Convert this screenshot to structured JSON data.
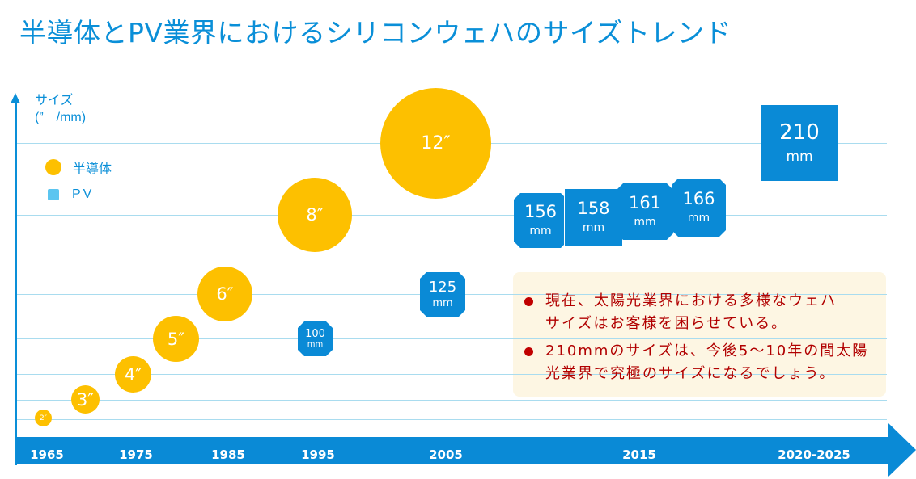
{
  "title": "半導体とPV業界におけるシリコンウェハのサイズトレンド",
  "y_axis": {
    "label": "サイズ",
    "unit": "(”　/mm)"
  },
  "legend": [
    {
      "label": "半導体",
      "color": "#fdc000",
      "shape": "circle"
    },
    {
      "label": "PV",
      "color": "#5bc5f0",
      "shape": "square"
    }
  ],
  "x_axis": {
    "ticks": [
      "1965",
      "1975",
      "1985",
      "1995",
      "2005",
      "2015",
      "2020-2025"
    ]
  },
  "semiconductor_wafers": [
    {
      "label": "2″",
      "size_inch": 2
    },
    {
      "label": "3″",
      "size_inch": 3
    },
    {
      "label": "4″",
      "size_inch": 4
    },
    {
      "label": "5″",
      "size_inch": 5
    },
    {
      "label": "6″",
      "size_inch": 6
    },
    {
      "label": "8″",
      "size_inch": 8
    },
    {
      "label": "12″",
      "size_inch": 12
    }
  ],
  "pv_wafers": [
    {
      "value": "100",
      "unit": "mm"
    },
    {
      "value": "125",
      "unit": "mm"
    },
    {
      "value": "156",
      "unit": "mm"
    },
    {
      "value": "158",
      "unit": "mm"
    },
    {
      "value": "161",
      "unit": "mm"
    },
    {
      "value": "166",
      "unit": "mm"
    },
    {
      "value": "210",
      "unit": "mm"
    }
  ],
  "notes": [
    {
      "line1": "現在、太陽光業界における多様なウェハ",
      "line2": "サイズはお客様を困らせている。"
    },
    {
      "line1": "210mmのサイズは、今後5～10年の間太陽",
      "line2": "光業界で究極のサイズになるでしょう。"
    }
  ],
  "colors": {
    "accent": "#0a8fd8",
    "semiconductor": "#fdc000",
    "pv": "#0a8ad6",
    "note_text": "#b10000",
    "note_bg": "#fdf6e3"
  }
}
